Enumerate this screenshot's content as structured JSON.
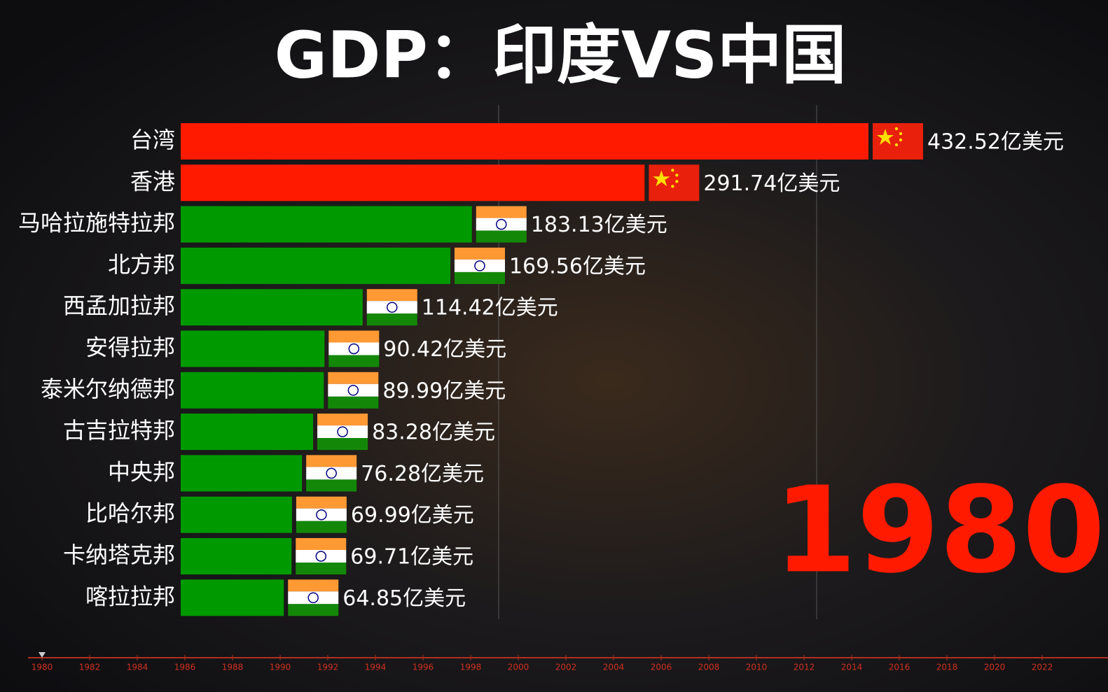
{
  "chart_data": {
    "type": "bar",
    "title": "GDP：印度VS中国",
    "categories": [
      "台湾",
      "香港",
      "马哈拉施特拉邦",
      "北方邦",
      "西孟加拉邦",
      "安得拉邦",
      "泰米尔纳德邦",
      "古吉拉特邦",
      "中央邦",
      "比哈尔邦",
      "卡纳塔克邦",
      "喀拉拉邦"
    ],
    "values": [
      432.52,
      291.74,
      183.13,
      169.56,
      114.42,
      90.42,
      89.99,
      83.28,
      76.28,
      69.99,
      69.71,
      64.85
    ],
    "value_labels": [
      "432.52亿美元",
      "291.74亿美元",
      "183.13亿美元",
      "169.56亿美元",
      "114.42亿美元",
      "90.42亿美元",
      "89.99亿美元",
      "83.28亿美元",
      "76.28亿美元",
      "69.99亿美元",
      "69.71亿美元",
      "64.85亿美元"
    ],
    "colors": [
      "#ff1a00",
      "#ff1a00",
      "#009900",
      "#009900",
      "#009900",
      "#009900",
      "#009900",
      "#009900",
      "#009900",
      "#009900",
      "#009900",
      "#009900"
    ],
    "year": 1980,
    "timeline": {
      "xlim": [
        1980,
        2024
      ],
      "xticks": [
        1980,
        1982,
        1984,
        1986,
        1988,
        1990,
        1992,
        1994,
        1996,
        1998,
        2000,
        2002,
        2004,
        2006,
        2008,
        2010,
        2012,
        2014,
        2016,
        2018,
        2020,
        2022
      ]
    }
  }
}
